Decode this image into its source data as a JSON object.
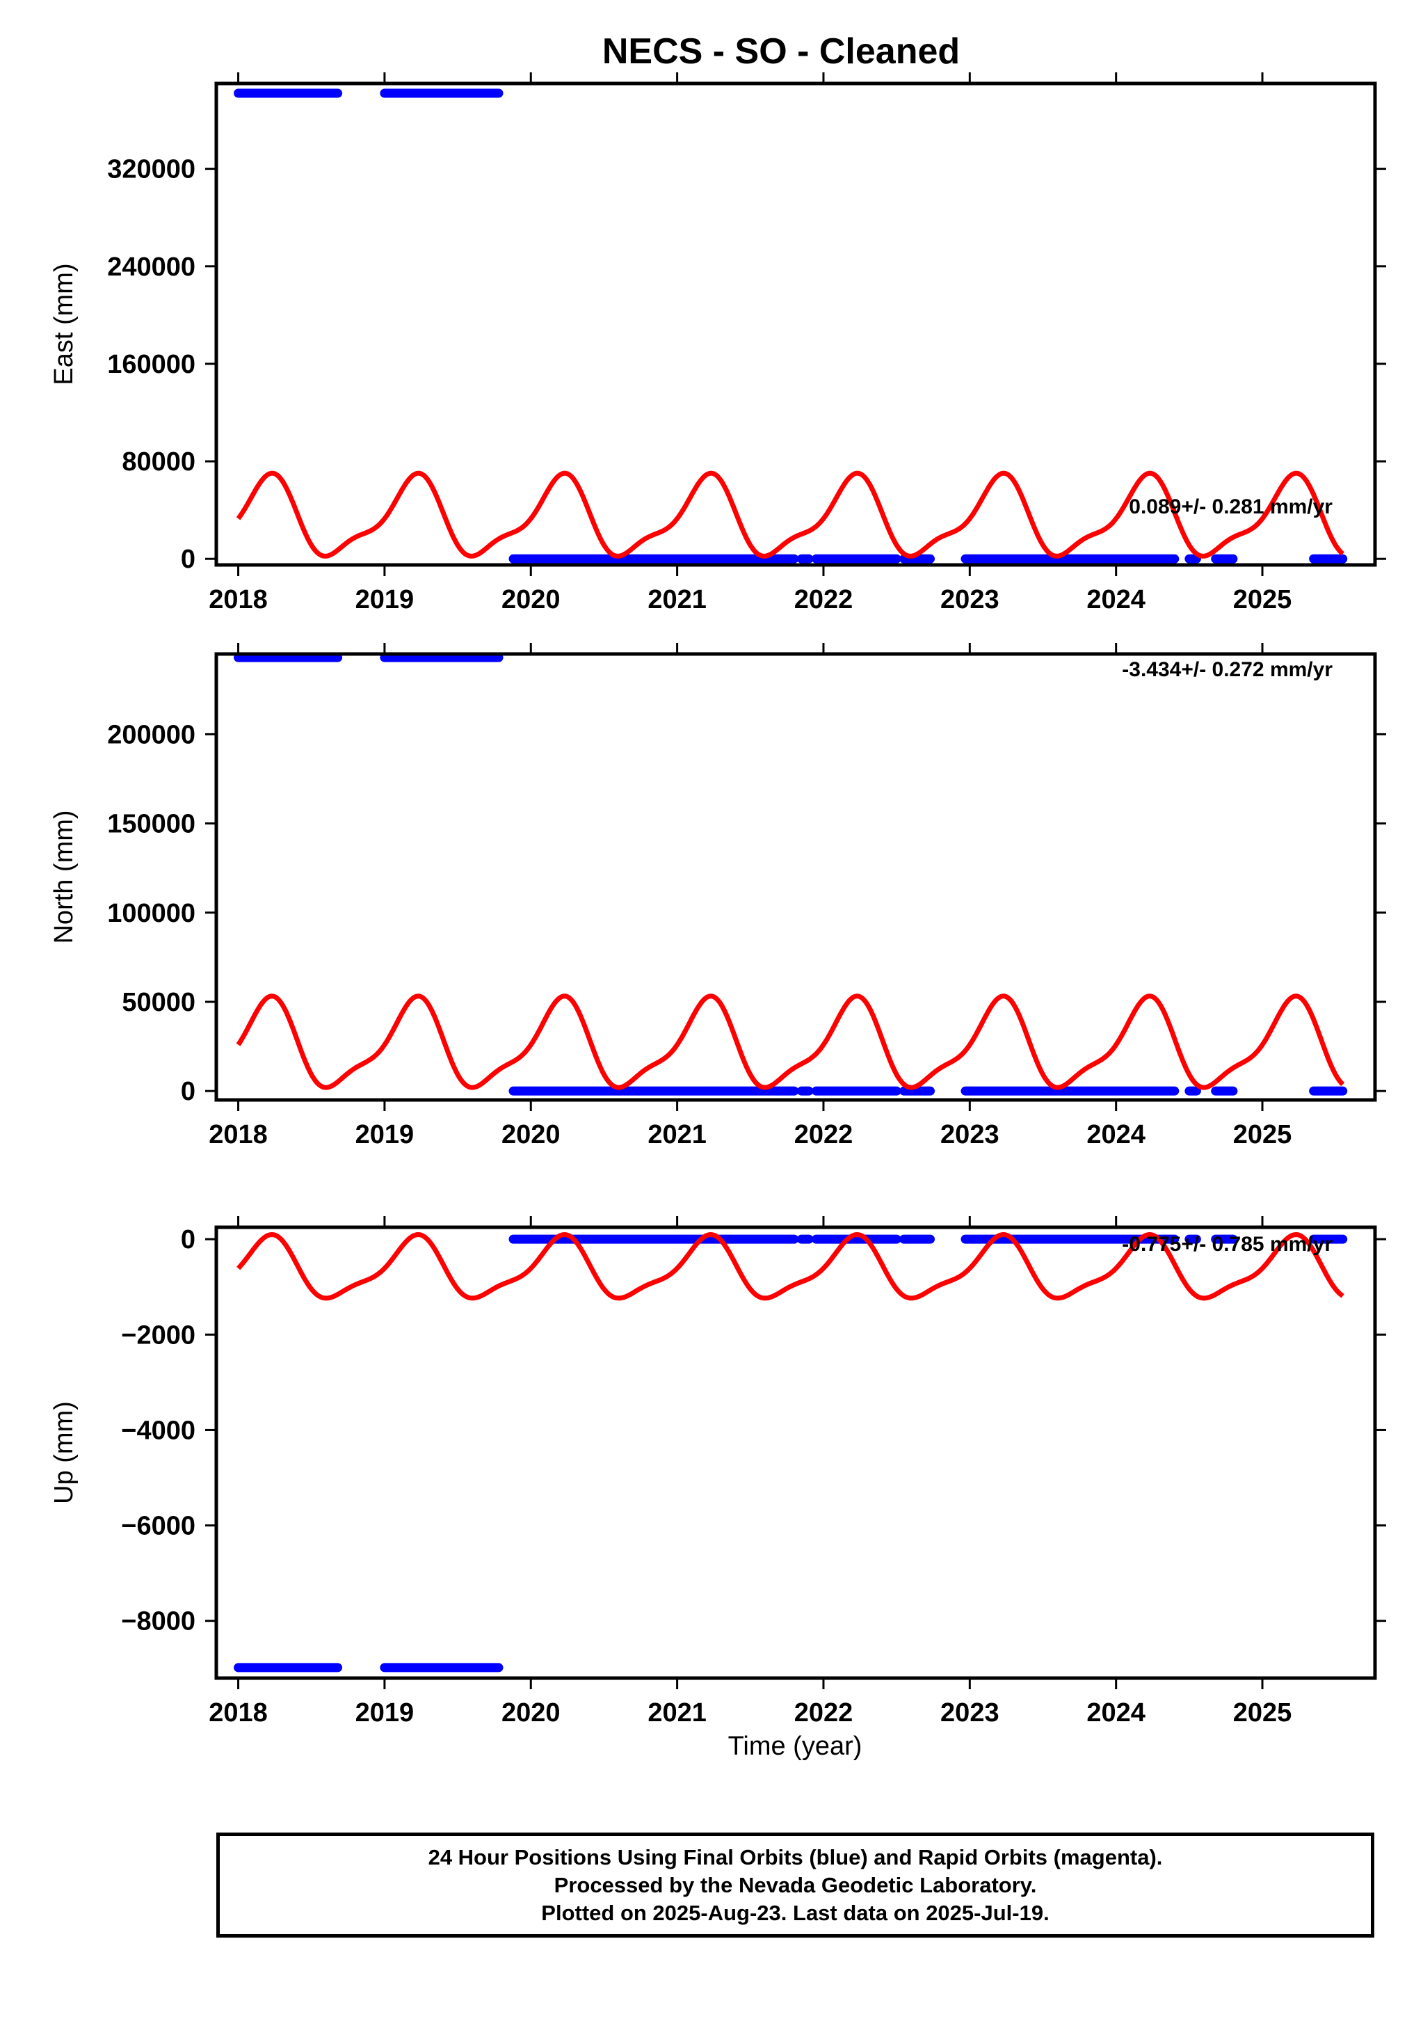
{
  "title": "NECS  - SO - Cleaned",
  "xlabel": "Time (year)",
  "footer": {
    "line1": "24 Hour Positions Using Final Orbits (blue) and Rapid Orbits (magenta).",
    "line2": "Processed by the Nevada Geodetic Laboratory.",
    "line3": "Plotted on 2025-Aug-23. Last data on 2025-Jul-19."
  },
  "colors": {
    "data": "#0000ff",
    "model": "#ff0000",
    "frame": "#000000"
  },
  "chart_data": [
    {
      "type": "scatter",
      "ylabel": "East (mm)",
      "rate_text": "0.089+/- 0.281 mm/yr",
      "xlim": [
        2017.85,
        2025.77
      ],
      "ylim": [
        -5000,
        390000
      ],
      "yticks": [
        0,
        80000,
        160000,
        240000,
        320000
      ],
      "ytick_labels": [
        "0",
        "80000",
        "160000",
        "240000",
        "320000"
      ],
      "xticks": [
        2018,
        2019,
        2020,
        2021,
        2022,
        2023,
        2024,
        2025
      ],
      "xtick_labels": [
        "2018",
        "2019",
        "2020",
        "2021",
        "2022",
        "2023",
        "2024",
        "2025"
      ],
      "data_segments": [
        {
          "x": [
            2018.0,
            2018.68
          ],
          "y": 382000
        },
        {
          "x": [
            2019.0,
            2019.78
          ],
          "y": 382000
        },
        {
          "x": [
            2019.88,
            2021.8
          ],
          "y": 0
        },
        {
          "x": [
            2021.85,
            2021.9
          ],
          "y": 0
        },
        {
          "x": [
            2021.95,
            2022.5
          ],
          "y": 0
        },
        {
          "x": [
            2022.55,
            2022.73
          ],
          "y": 0
        },
        {
          "x": [
            2022.97,
            2024.4
          ],
          "y": 0
        },
        {
          "x": [
            2024.5,
            2024.55
          ],
          "y": 0
        },
        {
          "x": [
            2024.68,
            2024.8
          ],
          "y": 0
        },
        {
          "x": [
            2025.35,
            2025.55
          ],
          "y": 0
        }
      ],
      "model": {
        "x0": 2018.0,
        "x1": 2025.55,
        "mean": 32000,
        "a1": 30000,
        "a2": 10000,
        "phase1": 1.2,
        "phase2": 3.3
      }
    },
    {
      "type": "scatter",
      "ylabel": "North (mm)",
      "rate_text": "-3.434+/- 0.272 mm/yr",
      "xlim": [
        2017.85,
        2025.77
      ],
      "ylim": [
        -5000,
        245000
      ],
      "yticks": [
        0,
        50000,
        100000,
        150000,
        200000
      ],
      "ytick_labels": [
        "0",
        "50000",
        "100000",
        "150000",
        "200000"
      ],
      "xticks": [
        2018,
        2019,
        2020,
        2021,
        2022,
        2023,
        2024,
        2025
      ],
      "xtick_labels": [
        "2018",
        "2019",
        "2020",
        "2021",
        "2022",
        "2023",
        "2024",
        "2025"
      ],
      "data_segments": [
        {
          "x": [
            2018.0,
            2018.68
          ],
          "y": 243000
        },
        {
          "x": [
            2019.0,
            2019.78
          ],
          "y": 243000
        },
        {
          "x": [
            2019.88,
            2021.8
          ],
          "y": 0
        },
        {
          "x": [
            2021.85,
            2021.9
          ],
          "y": 0
        },
        {
          "x": [
            2021.95,
            2022.5
          ],
          "y": 0
        },
        {
          "x": [
            2022.55,
            2022.73
          ],
          "y": 0
        },
        {
          "x": [
            2022.97,
            2024.4
          ],
          "y": 0
        },
        {
          "x": [
            2024.5,
            2024.55
          ],
          "y": 0
        },
        {
          "x": [
            2024.68,
            2024.8
          ],
          "y": 0
        },
        {
          "x": [
            2025.35,
            2025.55
          ],
          "y": 0
        }
      ],
      "model": {
        "x0": 2018.0,
        "x1": 2025.55,
        "mean": 24500,
        "a1": 23000,
        "a2": 7000,
        "phase1": 1.2,
        "phase2": 3.3
      }
    },
    {
      "type": "scatter",
      "ylabel": "Up (mm)",
      "rate_text": "-0.775+/- 0.785 mm/yr",
      "xlim": [
        2017.85,
        2025.77
      ],
      "ylim": [
        -9200,
        250
      ],
      "yticks": [
        0,
        -2000,
        -4000,
        -6000,
        -8000
      ],
      "ytick_labels": [
        "0",
        "−2000",
        "−4000",
        "−6000",
        "−8000"
      ],
      "xticks": [
        2018,
        2019,
        2020,
        2021,
        2022,
        2023,
        2024,
        2025
      ],
      "xtick_labels": [
        "2018",
        "2019",
        "2020",
        "2021",
        "2022",
        "2023",
        "2024",
        "2025"
      ],
      "data_segments": [
        {
          "x": [
            2018.0,
            2018.68
          ],
          "y": -8980
        },
        {
          "x": [
            2019.0,
            2019.78
          ],
          "y": -8980
        },
        {
          "x": [
            2019.88,
            2021.8
          ],
          "y": 0
        },
        {
          "x": [
            2021.85,
            2021.9
          ],
          "y": 0
        },
        {
          "x": [
            2021.95,
            2022.5
          ],
          "y": 0
        },
        {
          "x": [
            2022.55,
            2022.73
          ],
          "y": 0
        },
        {
          "x": [
            2022.97,
            2024.4
          ],
          "y": 0
        },
        {
          "x": [
            2024.5,
            2024.55
          ],
          "y": 0
        },
        {
          "x": [
            2024.68,
            2024.8
          ],
          "y": 0
        },
        {
          "x": [
            2025.35,
            2025.55
          ],
          "y": 0
        }
      ],
      "model": {
        "x0": 2018.0,
        "x1": 2025.55,
        "mean": -650,
        "a1": 600,
        "a2": 180,
        "phase1": 1.2,
        "phase2": 3.3
      }
    }
  ]
}
